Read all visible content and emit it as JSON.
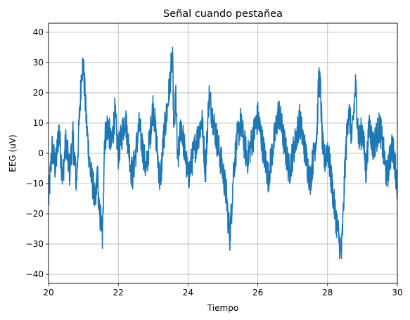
{
  "chart_data": {
    "type": "line",
    "title": "Señal cuando pestañea",
    "xlabel": "Tiempo",
    "ylabel": "EEG (uV)",
    "xlim": [
      20,
      30
    ],
    "ylim": [
      -43,
      43
    ],
    "xticks": [
      20,
      22,
      24,
      26,
      28,
      30
    ],
    "xtick_labels": [
      "20",
      "22",
      "24",
      "26",
      "28",
      "30"
    ],
    "yticks": [
      -40,
      -30,
      -20,
      -10,
      0,
      10,
      20,
      30,
      40
    ],
    "ytick_labels": [
      "−40",
      "−30",
      "−20",
      "−10",
      "0",
      "10",
      "20",
      "30",
      "40"
    ],
    "grid": true,
    "line_color": "#1f77b4",
    "series": [
      {
        "x": [
          20.0,
          20.1,
          20.2,
          20.3,
          20.4,
          20.5,
          20.6,
          20.7,
          20.8,
          20.85,
          20.9,
          20.95,
          21.0,
          21.05,
          21.1,
          21.2,
          21.3,
          21.35,
          21.4,
          21.45,
          21.5,
          21.55,
          21.6,
          21.7,
          21.8,
          21.9,
          22.0,
          22.2,
          22.4,
          22.6,
          22.8,
          23.0,
          23.2,
          23.3,
          23.4,
          23.5,
          23.55,
          23.6,
          23.65,
          23.7,
          23.8,
          24.0,
          24.2,
          24.4,
          24.5,
          24.6,
          24.8,
          25.0,
          25.1,
          25.15,
          25.2,
          25.25,
          25.3,
          25.4,
          25.5,
          25.7,
          26.0,
          26.3,
          26.6,
          26.9,
          27.2,
          27.5,
          27.7,
          27.75,
          27.8,
          27.85,
          27.9,
          28.0,
          28.1,
          28.2,
          28.3,
          28.35,
          28.4,
          28.45,
          28.5,
          28.6,
          28.7,
          28.8,
          28.9,
          29.0,
          29.1,
          29.2,
          29.3,
          29.5,
          29.7,
          29.85,
          30.0
        ],
        "y": [
          -16,
          2,
          -5,
          8,
          -8,
          4,
          -6,
          5,
          -10,
          3,
          15,
          28,
          29,
          18,
          8,
          -6,
          -12,
          -18,
          -5,
          -20,
          -22,
          -29,
          4,
          10,
          2,
          13,
          0,
          12,
          -8,
          9,
          -6,
          16,
          -10,
          5,
          14,
          26,
          33,
          6,
          20,
          -4,
          10,
          -8,
          2,
          11,
          -6,
          19,
          6,
          -6,
          -14,
          -22,
          -27,
          -18,
          -6,
          4,
          10,
          -2,
          12,
          -8,
          14,
          -6,
          11,
          -9,
          8,
          26,
          20,
          4,
          -3,
          2,
          -8,
          -18,
          -26,
          -30,
          -33,
          -20,
          -4,
          15,
          5,
          22,
          4,
          8,
          -6,
          10,
          2,
          9,
          -8,
          3,
          -10
        ]
      }
    ]
  }
}
